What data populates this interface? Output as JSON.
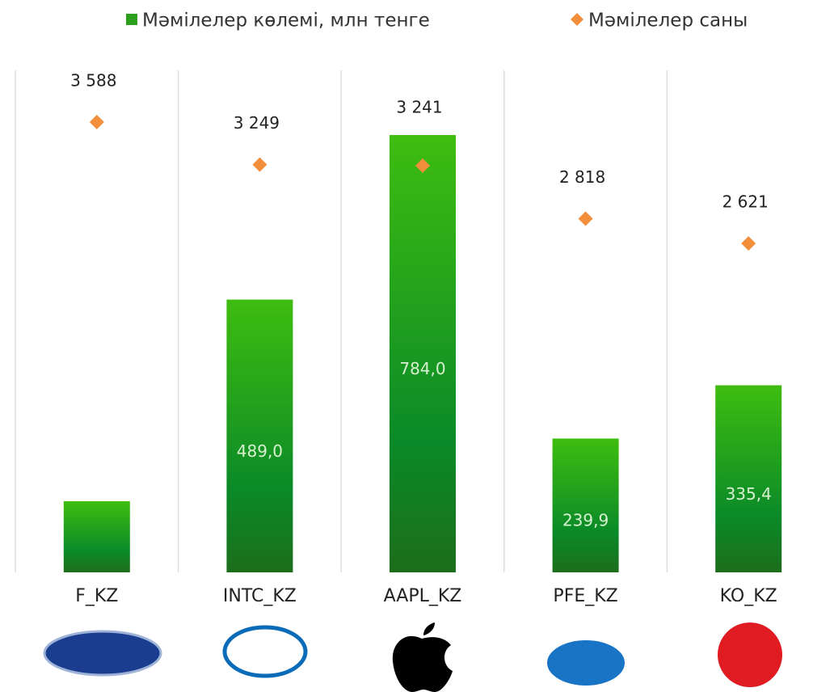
{
  "chart_data": {
    "type": "bar",
    "categories": [
      "F_KZ",
      "INTC_KZ",
      "AAPL_KZ",
      "PFE_KZ",
      "KO_KZ"
    ],
    "series": [
      {
        "name": "Мәмілелер көлемі, млн тенге",
        "type": "bar",
        "color": "#2ca01c",
        "values": [
          127.5,
          489.0,
          784.0,
          239.9,
          335.4
        ],
        "value_labels": [
          null,
          "489,0",
          "784,0",
          "239,9",
          "335,4"
        ]
      },
      {
        "name": "Мәмілелер саны",
        "type": "scatter",
        "axis": "y2",
        "color": "#f28e3c",
        "values": [
          3588,
          3249,
          3241,
          2818,
          2621
        ],
        "value_labels": [
          "3 588",
          "3 249",
          "3 241",
          "2 818",
          "2 621"
        ]
      }
    ],
    "ylim": [
      0,
      900
    ],
    "y2lim": [
      0,
      4000
    ],
    "grid": true
  }
}
